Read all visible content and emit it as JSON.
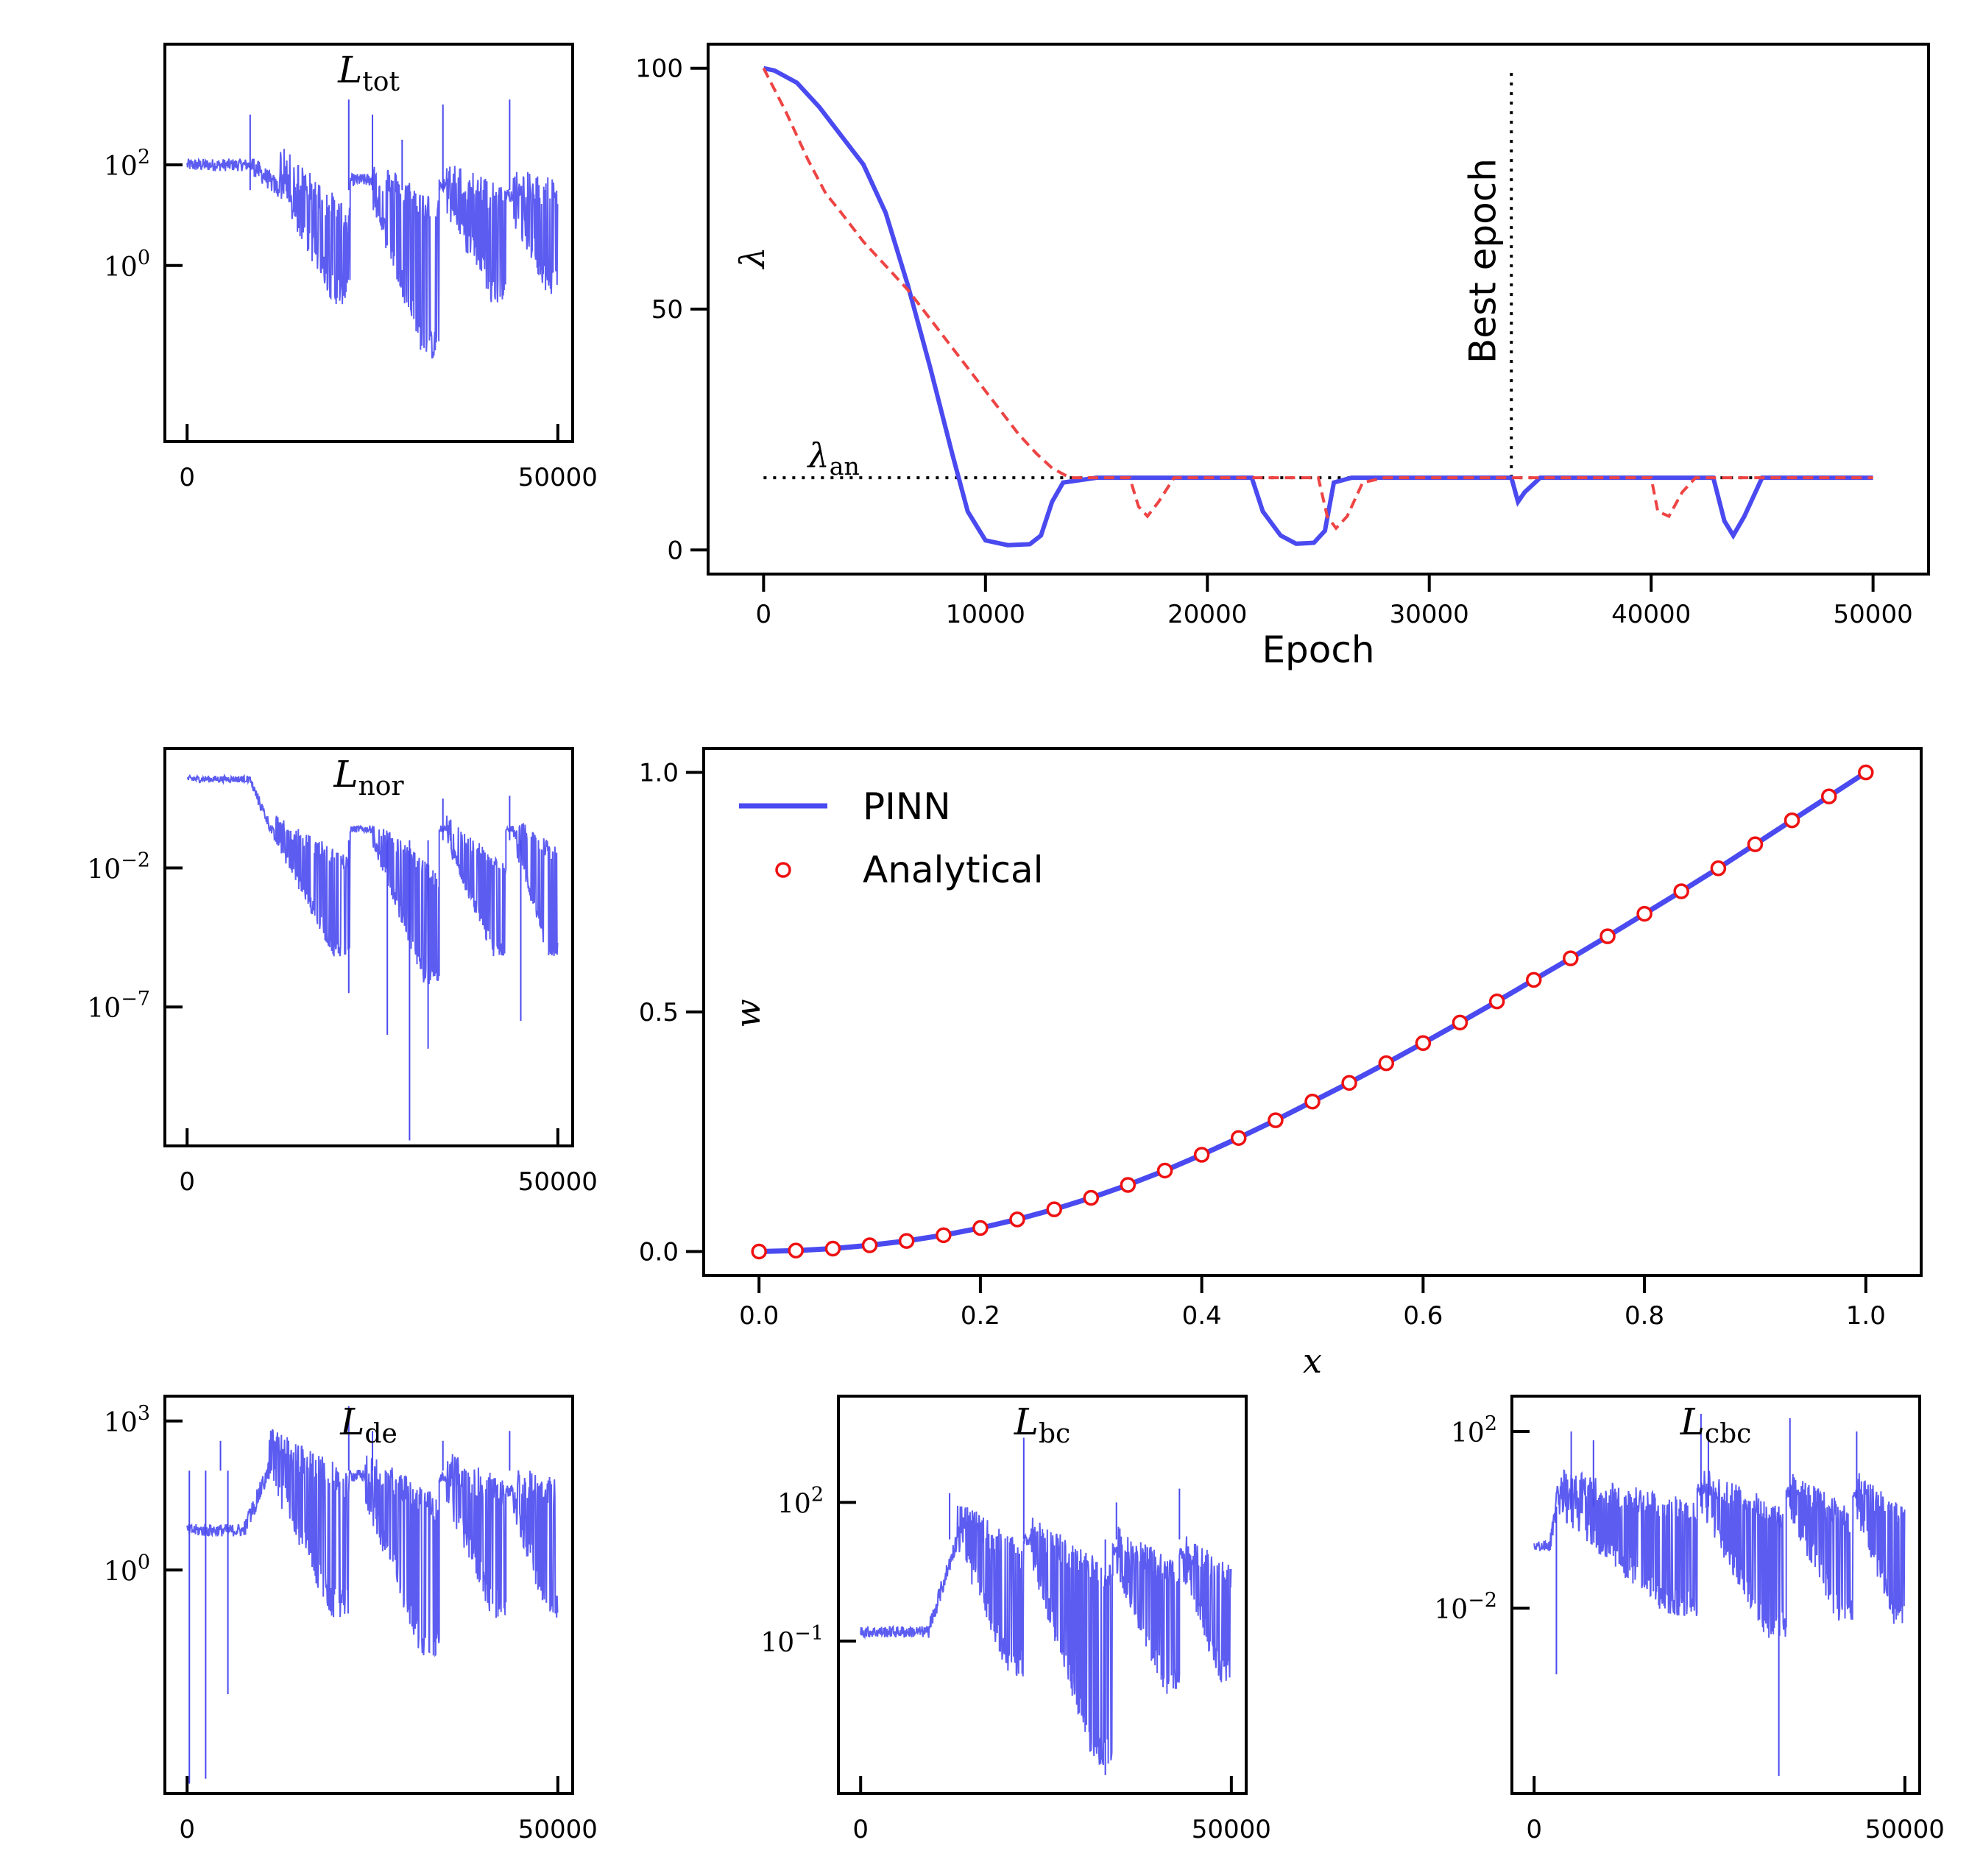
{
  "chart_data": [
    {
      "id": "ltot",
      "type": "line",
      "title": "L_tot",
      "title_main": "L",
      "title_sub": "tot",
      "yscale": "log",
      "xlim": [
        -3000,
        52000
      ],
      "ylim_log10": [
        -3.5,
        4.4
      ],
      "xticks": [
        0,
        50000
      ],
      "xtick_labels": [
        "0",
        "50000"
      ],
      "yticks_log10": [
        0,
        2
      ],
      "ytick_labels": [
        "10^0",
        "10^2"
      ],
      "color": "#4a4af0",
      "plateau_log10": 2.0,
      "segments": [
        {
          "start": 0,
          "drop": 12500,
          "end": 22000,
          "top_log10": 1.5,
          "bottom_log10": -0.6,
          "floor_log10": -0.6
        },
        {
          "start": 22000,
          "drop": 25000,
          "end": 34000,
          "top_log10": 1.3,
          "bottom_log10": -0.2,
          "floor_log10": -1.7
        },
        {
          "start": 34000,
          "drop": 35000,
          "end": 43000,
          "top_log10": 1.2,
          "bottom_log10": 0.3,
          "floor_log10": -0.6
        },
        {
          "start": 43000,
          "drop": 44000,
          "end": 50000,
          "top_log10": 1.0,
          "bottom_log10": 0.8,
          "floor_log10": -0.4
        }
      ],
      "spikes": [
        {
          "x": 21800,
          "log10": 3.3
        },
        {
          "x": 25000,
          "log10": 3.0
        },
        {
          "x": 34500,
          "log10": 3.2
        },
        {
          "x": 43500,
          "log10": 3.3
        },
        {
          "x": 8500,
          "log10": 3.0
        },
        {
          "x": 29000,
          "log10": 2.5
        }
      ]
    },
    {
      "id": "lambda",
      "type": "line",
      "xlabel": "Epoch",
      "ylabel": "λ",
      "xlim": [
        -2500,
        52500
      ],
      "ylim": [
        -5,
        105
      ],
      "xticks": [
        0,
        10000,
        20000,
        30000,
        40000,
        50000
      ],
      "xtick_labels": [
        "0",
        "10000",
        "20000",
        "30000",
        "40000",
        "50000"
      ],
      "yticks": [
        0,
        50,
        100
      ],
      "ytick_labels": [
        "0",
        "50",
        "100"
      ],
      "series": [
        {
          "style": "solid",
          "color": "#4a4af0",
          "points": [
            [
              0,
              100
            ],
            [
              500,
              99.5
            ],
            [
              1500,
              97
            ],
            [
              2500,
              92
            ],
            [
              3500,
              86
            ],
            [
              4500,
              80
            ],
            [
              5500,
              70
            ],
            [
              6500,
              55
            ],
            [
              7500,
              38
            ],
            [
              8500,
              20
            ],
            [
              9200,
              8
            ],
            [
              10000,
              2
            ],
            [
              11000,
              1
            ],
            [
              12000,
              1.2
            ],
            [
              12500,
              3
            ],
            [
              13000,
              10
            ],
            [
              13500,
              14
            ],
            [
              15000,
              15
            ],
            [
              22000,
              15
            ],
            [
              22500,
              8
            ],
            [
              23300,
              3
            ],
            [
              24000,
              1.3
            ],
            [
              24800,
              1.5
            ],
            [
              25300,
              4
            ],
            [
              25700,
              14
            ],
            [
              26500,
              15
            ],
            [
              33700,
              15
            ],
            [
              34000,
              10
            ],
            [
              34300,
              12
            ],
            [
              35000,
              15
            ],
            [
              42800,
              15
            ],
            [
              43300,
              6
            ],
            [
              43700,
              3
            ],
            [
              44200,
              7
            ],
            [
              45000,
              15
            ],
            [
              50000,
              15
            ]
          ]
        },
        {
          "style": "dashed",
          "color": "#ee4444",
          "points": [
            [
              0,
              100
            ],
            [
              1000,
              91
            ],
            [
              2000,
              81
            ],
            [
              2800,
              74
            ],
            [
              3500,
              70
            ],
            [
              4500,
              64
            ],
            [
              5500,
              59
            ],
            [
              6500,
              54
            ],
            [
              7500,
              48
            ],
            [
              8500,
              42
            ],
            [
              9500,
              36
            ],
            [
              10500,
              30
            ],
            [
              11500,
              24
            ],
            [
              12300,
              20
            ],
            [
              13000,
              17
            ],
            [
              13800,
              15
            ],
            [
              16500,
              15
            ],
            [
              16900,
              9
            ],
            [
              17300,
              7
            ],
            [
              17800,
              10
            ],
            [
              18500,
              15
            ],
            [
              25000,
              15
            ],
            [
              25400,
              7
            ],
            [
              25800,
              4.5
            ],
            [
              26300,
              7
            ],
            [
              27000,
              14
            ],
            [
              28000,
              15
            ],
            [
              40000,
              15
            ],
            [
              40300,
              8
            ],
            [
              40800,
              7
            ],
            [
              41400,
              12
            ],
            [
              42000,
              15
            ],
            [
              50000,
              15
            ]
          ]
        }
      ],
      "reference_lines": [
        {
          "orientation": "horizontal",
          "y": 15,
          "x_from": 0,
          "x_to": 50000,
          "label": "λ_an",
          "label_main": "λ",
          "label_sub": "an"
        },
        {
          "orientation": "vertical",
          "x": 33700,
          "y_from": 15,
          "y_to": 100,
          "label": "Best epoch"
        }
      ]
    },
    {
      "id": "lnor",
      "type": "line",
      "title": "L_nor",
      "title_main": "L",
      "title_sub": "nor",
      "yscale": "log",
      "xlim": [
        -3000,
        52000
      ],
      "ylim_log10": [
        -12,
        2.3
      ],
      "xticks": [
        0,
        50000
      ],
      "xtick_labels": [
        "0",
        "50000"
      ],
      "yticks_log10": [
        -7,
        -2
      ],
      "ytick_labels": [
        "10^-7",
        "10^-2"
      ],
      "color": "#4a4af0",
      "plateau_log10": 1.2,
      "segments": [
        {
          "start": 0,
          "drop": 12000,
          "end": 22000,
          "top_log10": -1.0,
          "bottom_log10": -3.5,
          "floor_log10": -5.0
        },
        {
          "start": 22000,
          "drop": 25000,
          "end": 34000,
          "top_log10": -1.0,
          "bottom_log10": -4.5,
          "floor_log10": -6.0
        },
        {
          "start": 34000,
          "drop": 35000,
          "end": 43000,
          "top_log10": -1.0,
          "bottom_log10": -4.0,
          "floor_log10": -5.0
        },
        {
          "start": 43000,
          "drop": 44000,
          "end": 50000,
          "top_log10": -1.0,
          "bottom_log10": -3.0,
          "floor_log10": -5.0
        }
      ],
      "spikes": [
        {
          "x": 30000,
          "log10": -11.8
        },
        {
          "x": 32500,
          "log10": -8.5
        },
        {
          "x": 27000,
          "log10": -8.0
        },
        {
          "x": 21800,
          "log10": -6.5
        },
        {
          "x": 45000,
          "log10": -7.5
        },
        {
          "x": 34500,
          "log10": 0.5
        },
        {
          "x": 43500,
          "log10": 0.6
        }
      ]
    },
    {
      "id": "w",
      "type": "line",
      "xlabel": "x",
      "ylabel": "w",
      "xlim": [
        -0.05,
        1.05
      ],
      "ylim": [
        -0.05,
        1.05
      ],
      "xticks": [
        0,
        0.2,
        0.4,
        0.6,
        0.8,
        1.0
      ],
      "xtick_labels": [
        "0.0",
        "0.2",
        "0.4",
        "0.6",
        "0.8",
        "1.0"
      ],
      "yticks": [
        0,
        0.5,
        1.0
      ],
      "ytick_labels": [
        "0.0",
        "0.5",
        "1.0"
      ],
      "legend": {
        "position": "top-left",
        "entries": [
          "PINN",
          "Analytical"
        ]
      },
      "series": [
        {
          "name": "PINN",
          "style": "solid",
          "color": "#4a4af0",
          "x": [
            0,
            0.0333,
            0.0667,
            0.1,
            0.1333,
            0.1667,
            0.2,
            0.2333,
            0.2667,
            0.3,
            0.3333,
            0.3667,
            0.4,
            0.4333,
            0.4667,
            0.5,
            0.5333,
            0.5667,
            0.6,
            0.6333,
            0.6667,
            0.7,
            0.7333,
            0.7667,
            0.8,
            0.8333,
            0.8667,
            0.9,
            0.9333,
            0.9667,
            1.0
          ],
          "y": [
            0,
            0.002,
            0.006,
            0.013,
            0.022,
            0.034,
            0.049,
            0.067,
            0.088,
            0.112,
            0.139,
            0.169,
            0.202,
            0.237,
            0.274,
            0.313,
            0.352,
            0.393,
            0.435,
            0.478,
            0.522,
            0.567,
            0.612,
            0.658,
            0.705,
            0.752,
            0.8,
            0.85,
            0.9,
            0.95,
            1.0
          ]
        },
        {
          "name": "Analytical",
          "style": "markers",
          "color": "#ee1111",
          "x": [
            0,
            0.0333,
            0.0667,
            0.1,
            0.1333,
            0.1667,
            0.2,
            0.2333,
            0.2667,
            0.3,
            0.3333,
            0.3667,
            0.4,
            0.4333,
            0.4667,
            0.5,
            0.5333,
            0.5667,
            0.6,
            0.6333,
            0.6667,
            0.7,
            0.7333,
            0.7667,
            0.8,
            0.8333,
            0.8667,
            0.9,
            0.9333,
            0.9667,
            1.0
          ],
          "y": [
            0,
            0.002,
            0.006,
            0.013,
            0.022,
            0.034,
            0.049,
            0.067,
            0.088,
            0.112,
            0.139,
            0.169,
            0.202,
            0.237,
            0.274,
            0.313,
            0.352,
            0.393,
            0.435,
            0.478,
            0.522,
            0.567,
            0.612,
            0.658,
            0.705,
            0.752,
            0.8,
            0.85,
            0.9,
            0.95,
            1.0
          ]
        }
      ]
    },
    {
      "id": "lde",
      "type": "line",
      "title": "L_de",
      "title_main": "L",
      "title_sub": "de",
      "yscale": "log",
      "xlim": [
        -3000,
        52000
      ],
      "ylim_log10": [
        -4.5,
        3.5
      ],
      "xticks": [
        0,
        50000
      ],
      "xtick_labels": [
        "0",
        "50000"
      ],
      "yticks_log10": [
        0,
        3
      ],
      "ytick_labels": [
        "10^0",
        "10^3"
      ],
      "color": "#4a4af0",
      "plateau_log10": 0.8,
      "segments": [
        {
          "start": 0,
          "drop": 11000,
          "end": 22000,
          "top_log10": 2.0,
          "bottom_log10": 0.5,
          "floor_log10": -0.8
        },
        {
          "start": 22000,
          "drop": 24000,
          "end": 34000,
          "top_log10": 1.5,
          "bottom_log10": 0.0,
          "floor_log10": -1.6
        },
        {
          "start": 34000,
          "drop": 35000,
          "end": 43000,
          "top_log10": 1.5,
          "bottom_log10": 0.5,
          "floor_log10": -0.8
        },
        {
          "start": 43000,
          "drop": 44000,
          "end": 50000,
          "top_log10": 1.2,
          "bottom_log10": 0.8,
          "floor_log10": -0.8
        }
      ],
      "spikes": [
        {
          "x": 300,
          "log10": -4.3
        },
        {
          "x": 2500,
          "log10": -4.2
        },
        {
          "x": 4500,
          "log10": 2.6
        },
        {
          "x": 21800,
          "log10": 3.3
        },
        {
          "x": 25000,
          "log10": 2.8
        },
        {
          "x": 34500,
          "log10": 2.6
        },
        {
          "x": 43500,
          "log10": 2.8
        },
        {
          "x": 5500,
          "log10": -2.5
        }
      ]
    },
    {
      "id": "lbc",
      "type": "line",
      "title": "L_bc",
      "title_main": "L",
      "title_sub": "bc",
      "yscale": "log",
      "xlim": [
        -3000,
        52000
      ],
      "ylim_log10": [
        -4.3,
        4.3
      ],
      "xticks": [
        0,
        50000
      ],
      "xtick_labels": [
        "0",
        "50000"
      ],
      "yticks_log10": [
        -1,
        2
      ],
      "ytick_labels": [
        "10^-1",
        "10^2"
      ],
      "color": "#4a4af0",
      "plateau_log10": -0.8,
      "segments": [
        {
          "start": 0,
          "drop": 13000,
          "end": 22000,
          "top_log10": 1.2,
          "bottom_log10": -0.5,
          "floor_log10": -1.6
        },
        {
          "start": 22000,
          "drop": 23000,
          "end": 34000,
          "top_log10": 0.8,
          "bottom_log10": -1.0,
          "floor_log10": -3.5
        },
        {
          "start": 34000,
          "drop": 34500,
          "end": 43000,
          "top_log10": 0.6,
          "bottom_log10": -0.8,
          "floor_log10": -2.0
        },
        {
          "start": 43000,
          "drop": 43500,
          "end": 50000,
          "top_log10": 0.5,
          "bottom_log10": -0.8,
          "floor_log10": -1.8
        }
      ],
      "spikes": [
        {
          "x": 22000,
          "log10": 3.4
        },
        {
          "x": 12000,
          "log10": 2.2
        },
        {
          "x": 33000,
          "log10": -3.9
        },
        {
          "x": 34500,
          "log10": 2.0
        },
        {
          "x": 43000,
          "log10": 2.3
        }
      ]
    },
    {
      "id": "lcbc",
      "type": "line",
      "title": "L_cbc",
      "title_main": "L",
      "title_sub": "cbc",
      "yscale": "log",
      "xlim": [
        -3000,
        52000
      ],
      "ylim_log10": [
        -6.2,
        2.8
      ],
      "xticks": [
        0,
        50000
      ],
      "xtick_labels": [
        "0",
        "50000"
      ],
      "yticks_log10": [
        -2,
        2
      ],
      "ytick_labels": [
        "10^-2",
        "10^2"
      ],
      "color": "#4a4af0",
      "plateau_log10": -0.6,
      "segments": [
        {
          "start": 0,
          "drop": 3000,
          "end": 22000,
          "top_log10": 0.3,
          "bottom_log10": -1.0,
          "floor_log10": -2.0
        },
        {
          "start": 22000,
          "drop": 22500,
          "end": 34000,
          "top_log10": 0.3,
          "bottom_log10": -1.2,
          "floor_log10": -2.5
        },
        {
          "start": 34000,
          "drop": 34500,
          "end": 43000,
          "top_log10": 0.2,
          "bottom_log10": -1.2,
          "floor_log10": -2.2
        },
        {
          "start": 43000,
          "drop": 43500,
          "end": 50000,
          "top_log10": 0.2,
          "bottom_log10": -1.2,
          "floor_log10": -2.2
        }
      ],
      "spikes": [
        {
          "x": 22500,
          "log10": 2.4
        },
        {
          "x": 23500,
          "log10": 2.0
        },
        {
          "x": 33000,
          "log10": -5.8
        },
        {
          "x": 34500,
          "log10": 2.3
        },
        {
          "x": 43500,
          "log10": 2.0
        },
        {
          "x": 3000,
          "log10": -3.5
        },
        {
          "x": 5000,
          "log10": 2.0
        },
        {
          "x": 8000,
          "log10": 1.8
        }
      ]
    }
  ]
}
